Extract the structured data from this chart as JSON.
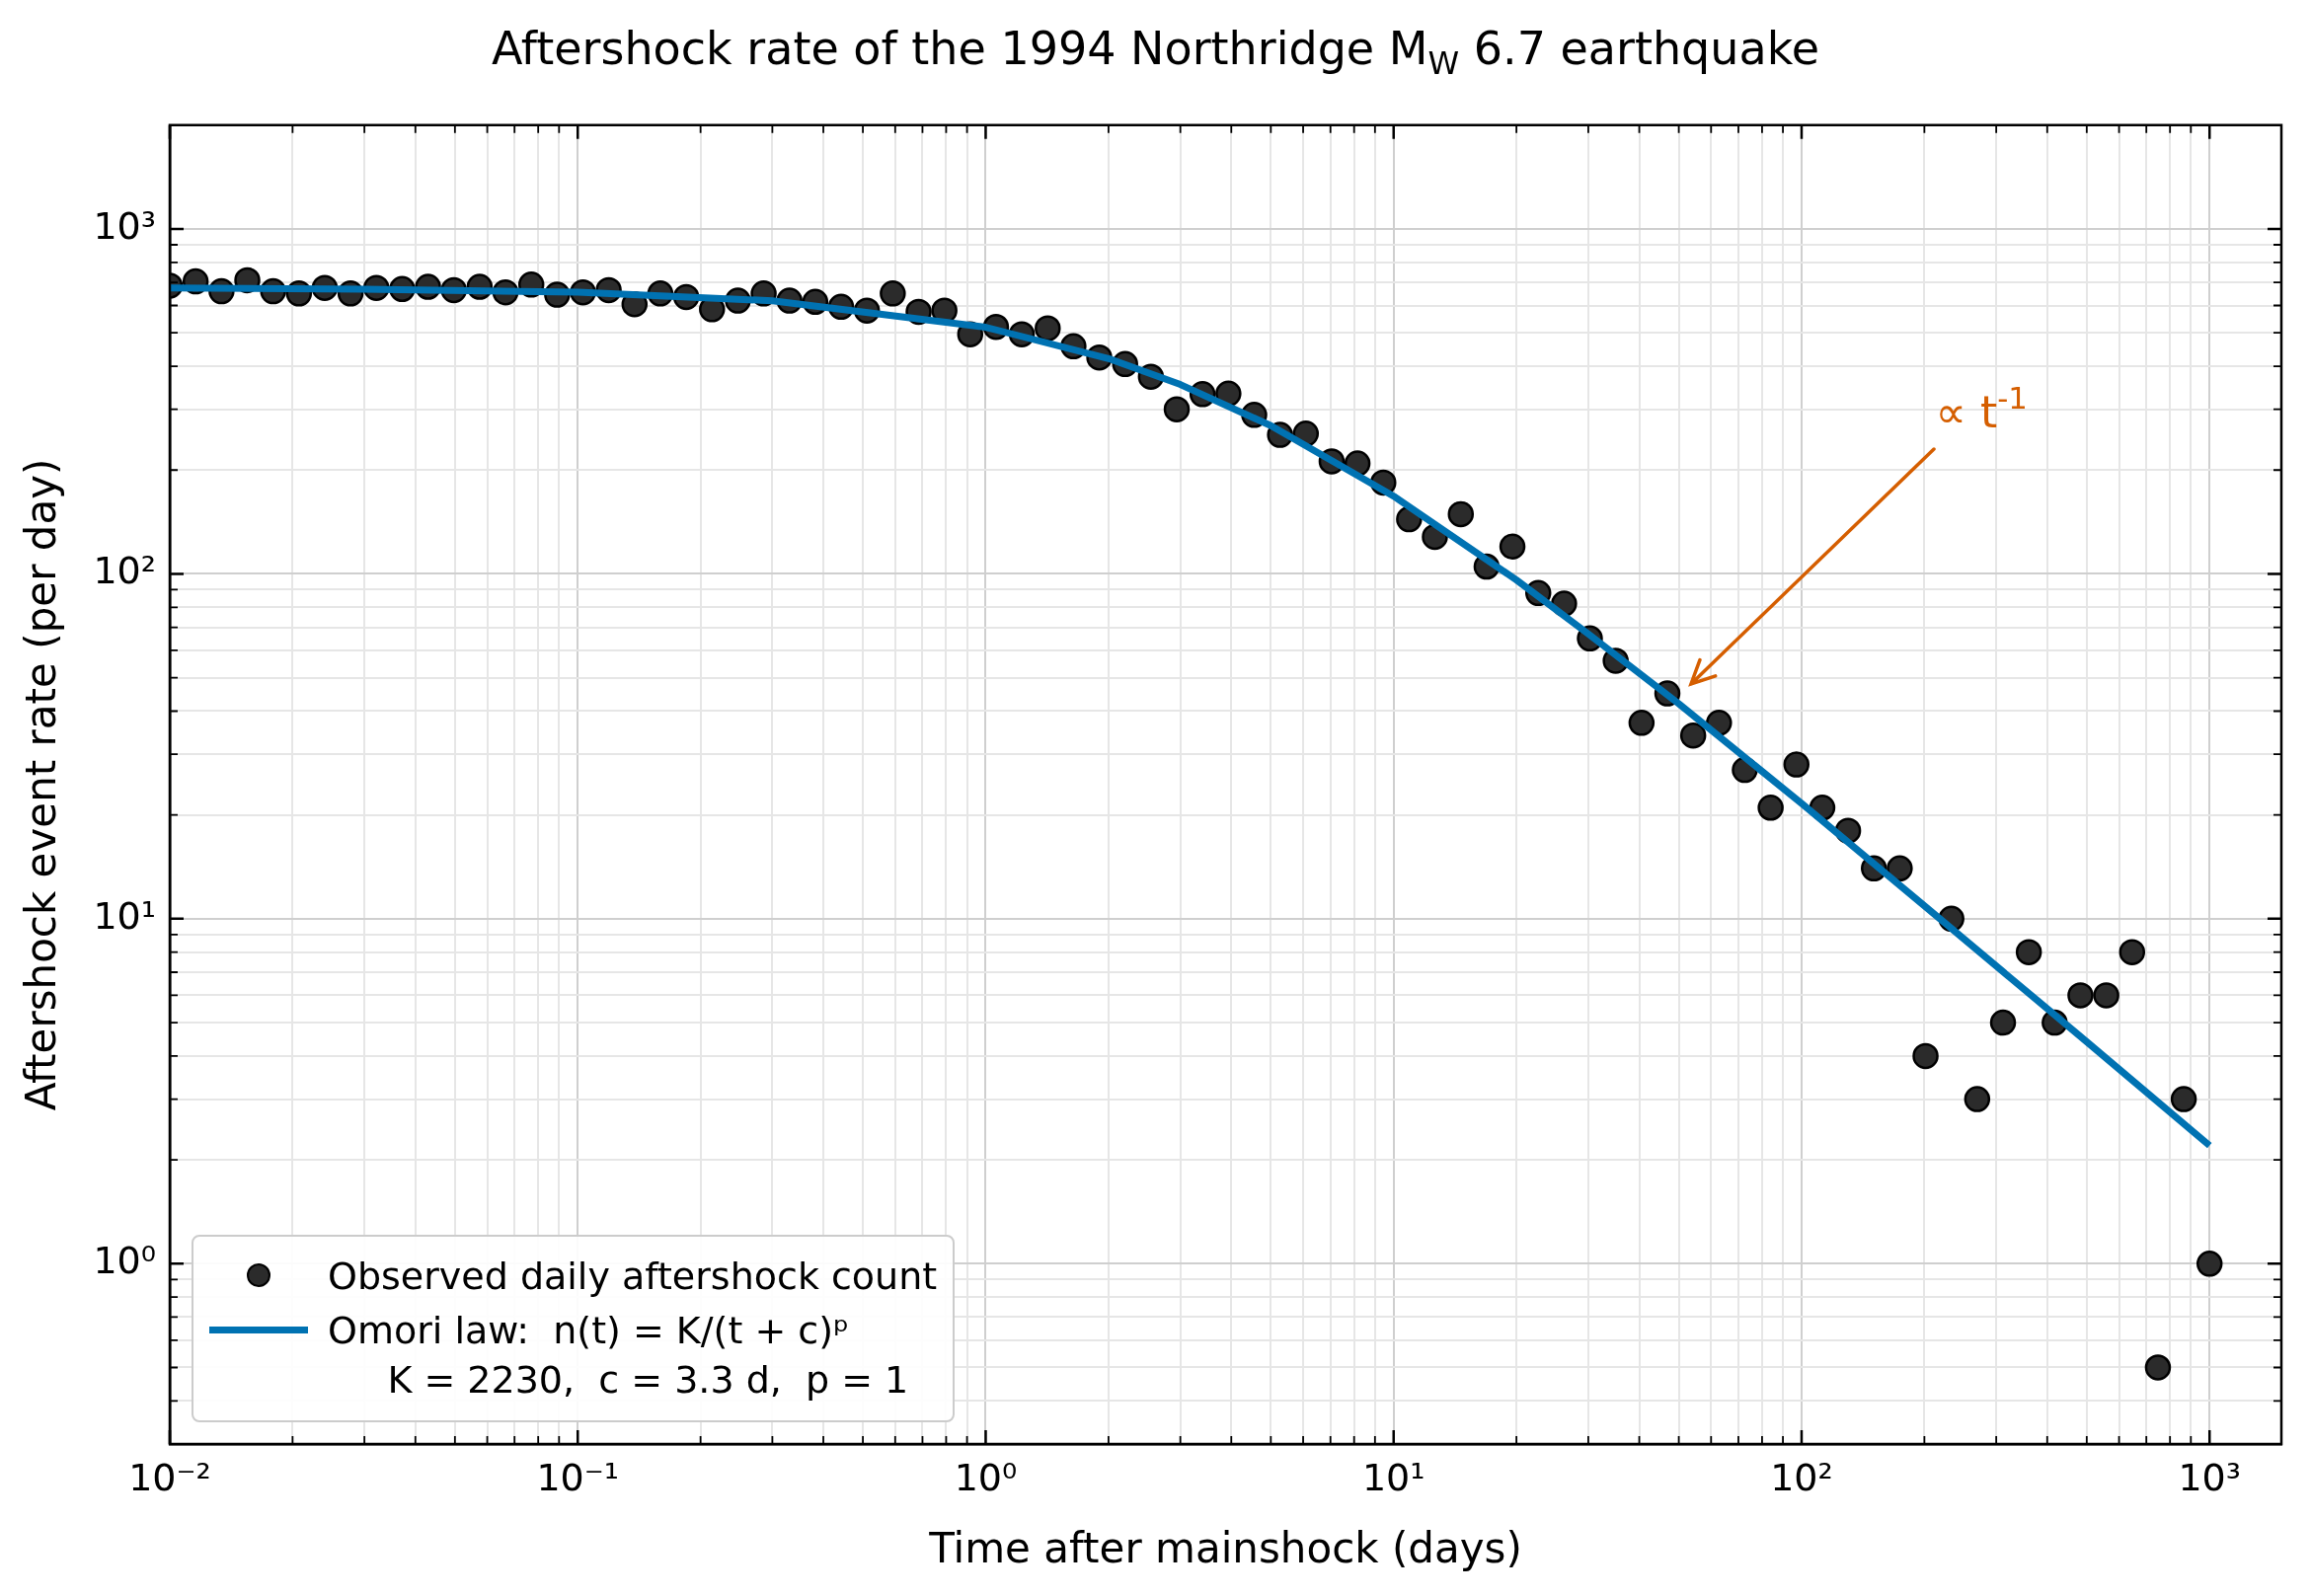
{
  "chart_data": {
    "type": "scatter",
    "title": "Aftershock rate of the 1994 Northridge M$_{W}$ 6.7 earthquake",
    "xlabel": "Time after mainshock (days)",
    "ylabel": "Aftershock event rate (per day)",
    "log": "xy",
    "grid": true,
    "legend": "bottom left",
    "xlim": [
      0.01,
      1500
    ],
    "ylim": [
      0.3,
      2000
    ],
    "xticks": [
      {
        "value": 0.01,
        "label": "10⁻²"
      },
      {
        "value": 0.02,
        "label": null
      },
      {
        "value": 0.03,
        "label": null
      },
      {
        "value": 0.04,
        "label": null
      },
      {
        "value": 0.05,
        "label": null
      },
      {
        "value": 0.06,
        "label": null
      },
      {
        "value": 0.07,
        "label": null
      },
      {
        "value": 0.08,
        "label": null
      },
      {
        "value": 0.09,
        "label": null
      },
      {
        "value": 0.1,
        "label": "10⁻¹"
      },
      {
        "value": 0.2,
        "label": null
      },
      {
        "value": 0.3,
        "label": null
      },
      {
        "value": 0.4,
        "label": null
      },
      {
        "value": 0.5,
        "label": null
      },
      {
        "value": 0.6,
        "label": null
      },
      {
        "value": 0.7,
        "label": null
      },
      {
        "value": 0.8,
        "label": null
      },
      {
        "value": 0.9,
        "label": null
      },
      {
        "value": 1,
        "label": "10⁰"
      },
      {
        "value": 2,
        "label": null
      },
      {
        "value": 3,
        "label": null
      },
      {
        "value": 4,
        "label": null
      },
      {
        "value": 5,
        "label": null
      },
      {
        "value": 6,
        "label": null
      },
      {
        "value": 7,
        "label": null
      },
      {
        "value": 8,
        "label": null
      },
      {
        "value": 9,
        "label": null
      },
      {
        "value": 10,
        "label": "10¹"
      },
      {
        "value": 20,
        "label": null
      },
      {
        "value": 30,
        "label": null
      },
      {
        "value": 40,
        "label": null
      },
      {
        "value": 50,
        "label": null
      },
      {
        "value": 60,
        "label": null
      },
      {
        "value": 70,
        "label": null
      },
      {
        "value": 80,
        "label": null
      },
      {
        "value": 90,
        "label": null
      },
      {
        "value": 100,
        "label": "10²"
      },
      {
        "value": 200,
        "label": null
      },
      {
        "value": 300,
        "label": null
      },
      {
        "value": 400,
        "label": null
      },
      {
        "value": 500,
        "label": null
      },
      {
        "value": 600,
        "label": null
      },
      {
        "value": 700,
        "label": null
      },
      {
        "value": 800,
        "label": null
      },
      {
        "value": 900,
        "label": null
      },
      {
        "value": 1000,
        "label": "10³"
      }
    ],
    "yticks": [
      {
        "value": 0.4,
        "label": null
      },
      {
        "value": 0.5,
        "label": null
      },
      {
        "value": 0.6,
        "label": null
      },
      {
        "value": 0.7,
        "label": null
      },
      {
        "value": 0.8,
        "label": null
      },
      {
        "value": 0.9,
        "label": null
      },
      {
        "value": 1,
        "label": "10⁰"
      },
      {
        "value": 2,
        "label": null
      },
      {
        "value": 3,
        "label": null
      },
      {
        "value": 4,
        "label": null
      },
      {
        "value": 5,
        "label": null
      },
      {
        "value": 6,
        "label": null
      },
      {
        "value": 7,
        "label": null
      },
      {
        "value": 8,
        "label": null
      },
      {
        "value": 9,
        "label": null
      },
      {
        "value": 10,
        "label": "10¹"
      },
      {
        "value": 20,
        "label": null
      },
      {
        "value": 30,
        "label": null
      },
      {
        "value": 40,
        "label": null
      },
      {
        "value": 50,
        "label": null
      },
      {
        "value": 60,
        "label": null
      },
      {
        "value": 70,
        "label": null
      },
      {
        "value": 80,
        "label": null
      },
      {
        "value": 90,
        "label": null
      },
      {
        "value": 100,
        "label": "10²"
      },
      {
        "value": 200,
        "label": null
      },
      {
        "value": 300,
        "label": null
      },
      {
        "value": 400,
        "label": null
      },
      {
        "value": 500,
        "label": null
      },
      {
        "value": 600,
        "label": null
      },
      {
        "value": 700,
        "label": null
      },
      {
        "value": 800,
        "label": null
      },
      {
        "value": 900,
        "label": null
      },
      {
        "value": 1000,
        "label": "10³"
      }
    ],
    "annotations": [
      "∝ t$^{-1}$"
    ],
    "series": [
      {
        "name": "Observed daily aftershock count",
        "marker": "circle",
        "color": "#2b2b2b",
        "x": [
          0.01,
          0.01157,
          0.01339,
          0.01549,
          0.01792,
          0.02073,
          0.02398,
          0.02774,
          0.03209,
          0.03713,
          0.04296,
          0.04969,
          0.05749,
          0.06651,
          0.07694,
          0.08902,
          0.103,
          0.1191,
          0.1378,
          0.1594,
          0.1845,
          0.2134,
          0.2469,
          0.2856,
          0.3304,
          0.3822,
          0.4422,
          0.5116,
          0.5919,
          0.6848,
          0.7922,
          0.9163,
          1.06,
          1.226,
          1.419,
          1.641,
          1.899,
          2.197,
          2.541,
          2.94,
          3.401,
          3.935,
          4.552,
          5.266,
          6.092,
          7.048,
          8.154,
          9.434,
          10.91,
          12.62,
          14.61,
          16.9,
          19.55,
          22.62,
          26.17,
          30.27,
          35.02,
          40.52,
          46.88,
          54.23,
          62.74,
          72.58,
          83.97,
          97.13,
          112.4,
          130,
          150.4,
          174,
          201.3,
          232.9,
          269.4,
          311.7,
          360.6,
          417.2,
          482.6,
          558.3,
          645.9,
          747.3,
          864.5,
          1000
        ],
        "values": [
          685,
          705,
          660,
          710,
          660,
          650,
          675,
          650,
          675,
          670,
          680,
          665,
          680,
          655,
          690,
          645,
          655,
          665,
          605,
          650,
          635,
          585,
          620,
          650,
          620,
          615,
          595,
          580,
          650,
          575,
          580,
          495,
          520,
          495,
          515,
          457,
          424,
          406,
          373,
          300,
          332,
          333,
          289,
          253,
          255,
          212,
          209,
          184,
          144,
          128,
          149,
          105,
          120,
          88,
          82,
          65,
          56,
          37,
          45,
          34,
          37,
          27,
          21,
          28,
          21,
          18,
          14,
          14,
          4,
          10,
          3,
          5,
          8,
          5,
          6,
          6,
          8,
          0.5,
          3,
          1
        ]
      },
      {
        "name": "Omori law:  n(t) = K/(t + c)ᵖ\n     K = 2230,  c = 3.3 d,  p = 1",
        "type": "line",
        "color": "#0072b2",
        "x": [
          0.01,
          0.03,
          0.1,
          0.3,
          1,
          2,
          3,
          5,
          10,
          20,
          30,
          50,
          100,
          200,
          500,
          1000
        ],
        "values": [
          674,
          669,
          656,
          619,
          519,
          421,
          354,
          269,
          168,
          96,
          67,
          42,
          21.6,
          10.9,
          4.4,
          2.2
        ]
      }
    ]
  }
}
